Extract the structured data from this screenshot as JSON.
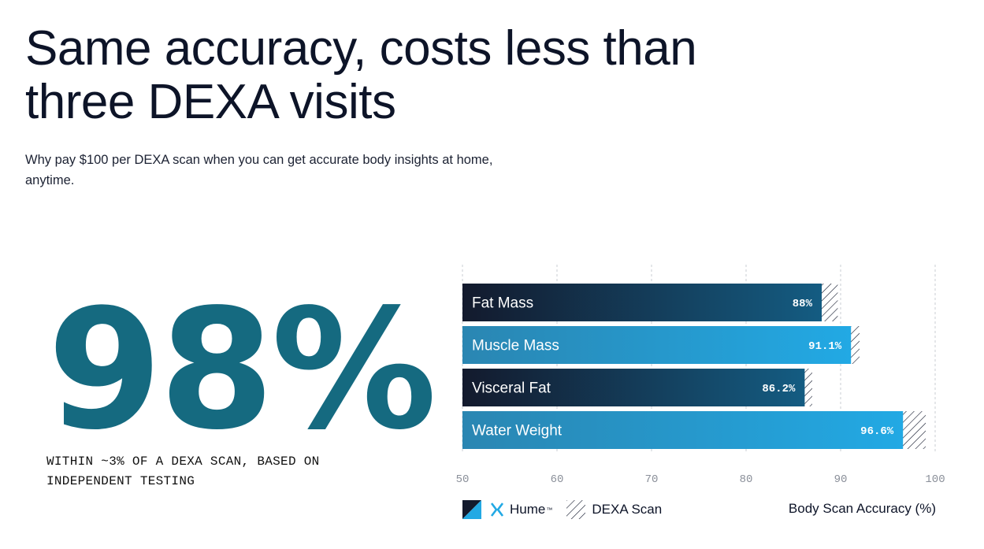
{
  "header": {
    "title": "Same accuracy, costs less than three DEXA visits",
    "subtitle": "Why pay $100 per DEXA scan when you can get accurate body insights at home, anytime."
  },
  "stat": {
    "value": "98%",
    "caption": "WITHIN ~3% OF A DEXA SCAN, BASED ON INDEPENDENT TESTING"
  },
  "legend": {
    "brand": "Hume",
    "brand_mark": "™",
    "dexa": "DEXA Scan"
  },
  "colors": {
    "stat": "#156a80",
    "dark_bar_start": "#131a2d",
    "dark_bar_end": "#145c82",
    "light_bar_start": "#2a86b2",
    "light_bar_end": "#22a9e4",
    "hatch": "#0d1428"
  },
  "chart_data": {
    "type": "bar",
    "orientation": "horizontal",
    "categories": [
      "Fat Mass",
      "Muscle Mass",
      "Visceral Fat",
      "Water Weight"
    ],
    "series": [
      {
        "name": "Hume",
        "values": [
          88,
          91.1,
          86.2,
          96.6
        ]
      },
      {
        "name": "DEXA Scan",
        "values": [
          89.7,
          92.0,
          87.0,
          99.0
        ]
      }
    ],
    "value_labels": [
      "88%",
      "91.1%",
      "86.2%",
      "96.6%"
    ],
    "xlim": [
      50,
      100
    ],
    "xticks": [
      "50",
      "60",
      "70",
      "80",
      "90",
      "100"
    ],
    "xlabel": "Body Scan Accuracy (%)",
    "grid": "vertical dashed",
    "legend_position": "bottom"
  }
}
